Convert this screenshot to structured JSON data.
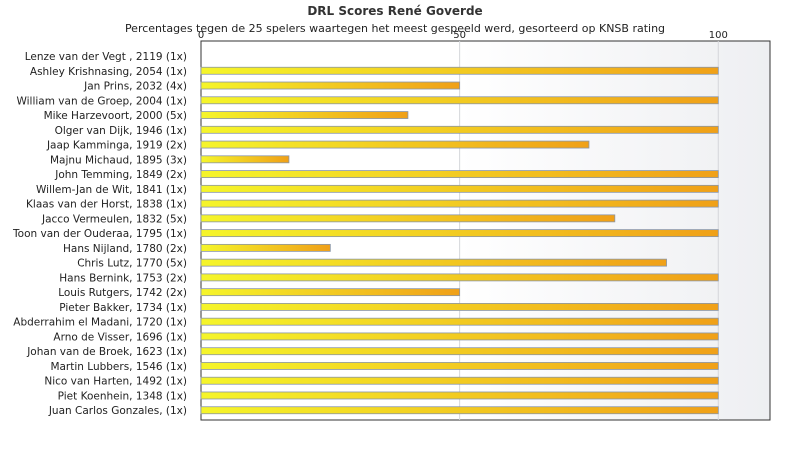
{
  "chart_data": {
    "type": "bar",
    "orientation": "horizontal",
    "title": "DRL Scores René Goverde",
    "subtitle": "Percentages tegen de 25 spelers waartegen het meest gespeeld werd, gesorteerd op KNSB rating",
    "xlim": [
      0,
      110
    ],
    "xticks": [
      0,
      50,
      100
    ],
    "grid": true,
    "colors": {
      "bar_start": "#f5f52a",
      "bar_end": "#f0a018",
      "bar_stroke": "#8a96a8"
    },
    "categories": [
      "Lenze van der Vegt , 2119 (1x)",
      "Ashley Krishnasing, 2054 (1x)",
      "Jan Prins, 2032 (4x)",
      "William van de Groep, 2004 (1x)",
      "Mike Harzevoort, 2000 (5x)",
      "Olger van Dijk, 1946 (1x)",
      "Jaap Kamminga, 1919 (2x)",
      "Majnu Michaud, 1895 (3x)",
      "John Temming, 1849 (2x)",
      "Willem-Jan de Wit, 1841 (1x)",
      "Klaas van der Horst, 1838 (1x)",
      "Jacco Vermeulen, 1832 (5x)",
      "Toon van der Ouderaa, 1795 (1x)",
      "Hans Nijland, 1780 (2x)",
      "Chris Lutz, 1770 (5x)",
      "Hans Bernink, 1753 (2x)",
      "Louis Rutgers, 1742 (2x)",
      "Pieter Bakker, 1734 (1x)",
      "Abderrahim el Madani, 1720 (1x)",
      "Arno de Visser, 1696 (1x)",
      "Johan van de Broek, 1623 (1x)",
      "Martin Lubbers, 1546 (1x)",
      "Nico van Harten, 1492 (1x)",
      "Piet Koenhein, 1348 (1x)",
      "Juan Carlos Gonzales,  (1x)"
    ],
    "values": [
      0,
      100,
      50,
      100,
      40,
      100,
      75,
      17,
      100,
      100,
      100,
      80,
      100,
      25,
      90,
      100,
      50,
      100,
      100,
      100,
      100,
      100,
      100,
      100,
      100
    ]
  }
}
